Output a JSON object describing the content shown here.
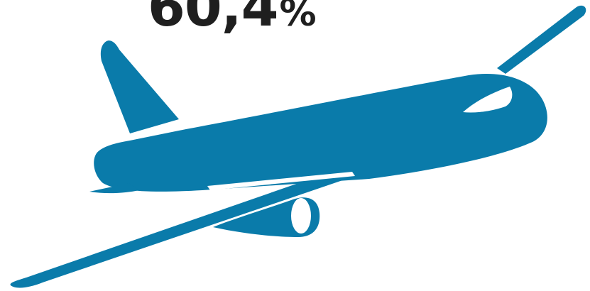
{
  "stat": {
    "value": "60,4",
    "unit": "%"
  },
  "illustration": {
    "icon": "airplane-icon",
    "color": "#0a7baa"
  }
}
